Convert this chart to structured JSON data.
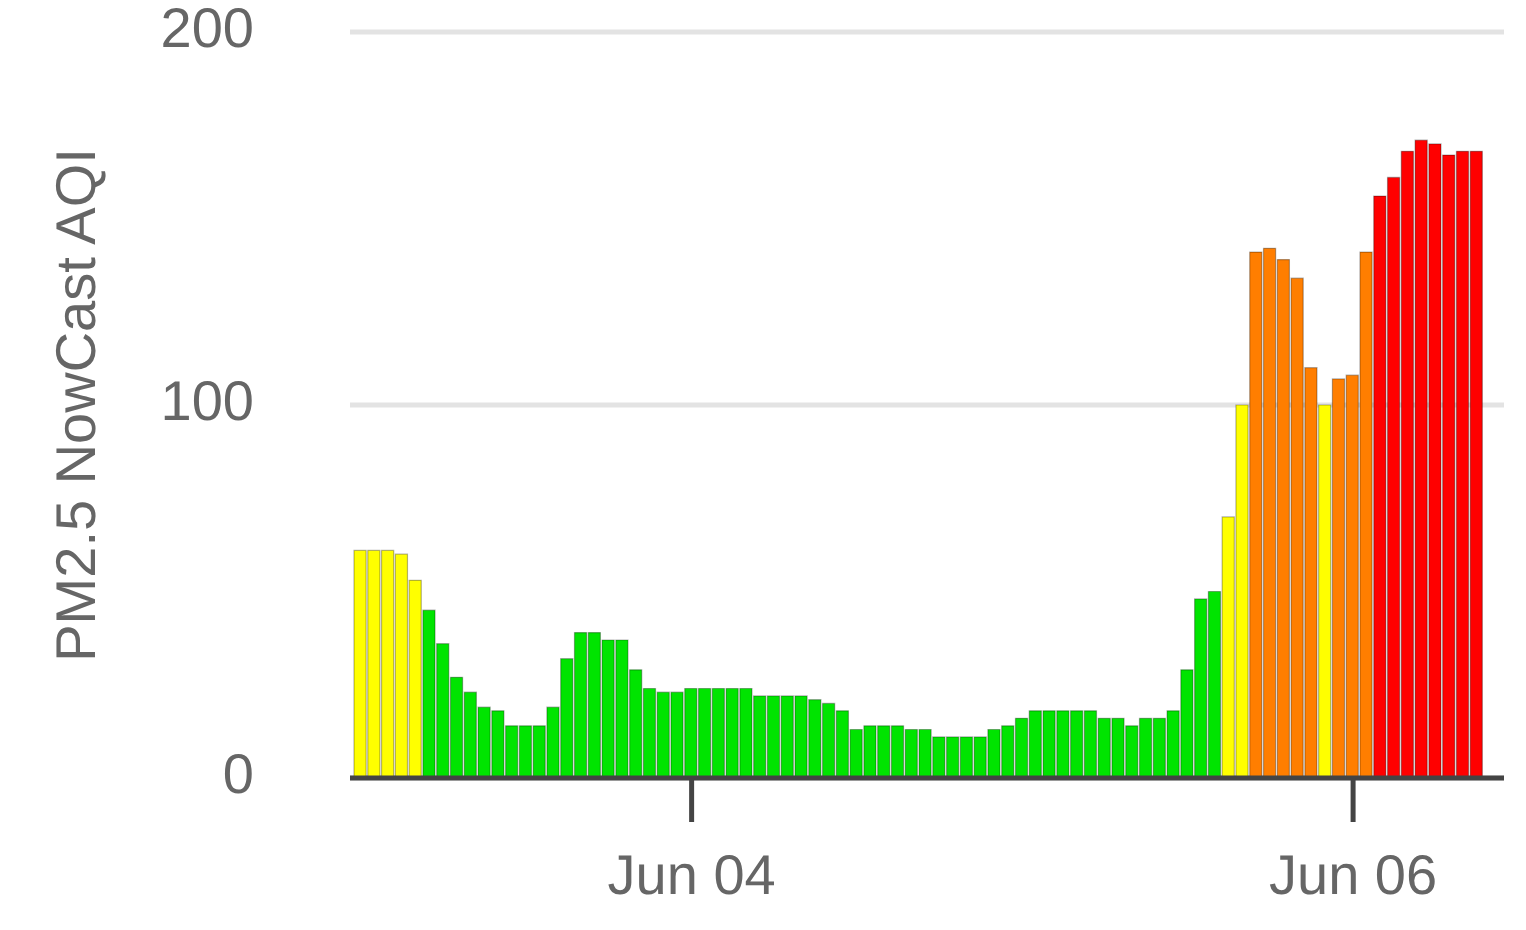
{
  "chart_data": {
    "type": "bar",
    "ylabel": "PM2.5 NowCast AQI",
    "categories": [
      null,
      null,
      null,
      null,
      null,
      null,
      null,
      null,
      null,
      null,
      null,
      null,
      null,
      null,
      null,
      null,
      null,
      null,
      null,
      null,
      null,
      null,
      null,
      null,
      "Jun 04",
      null,
      null,
      null,
      null,
      null,
      null,
      null,
      null,
      null,
      null,
      null,
      null,
      null,
      null,
      null,
      null,
      null,
      null,
      null,
      null,
      null,
      null,
      null,
      null,
      null,
      null,
      null,
      null,
      null,
      null,
      null,
      null,
      null,
      null,
      null,
      null,
      null,
      null,
      null,
      null,
      null,
      null,
      null,
      null,
      null,
      null,
      null,
      "Jun 06",
      null,
      null,
      null,
      null,
      null,
      null,
      null,
      null,
      null
    ],
    "values": [
      61,
      61,
      61,
      60,
      53,
      45,
      36,
      27,
      23,
      19,
      18,
      14,
      14,
      14,
      19,
      32,
      39,
      39,
      37,
      37,
      29,
      24,
      23,
      23,
      24,
      24,
      24,
      24,
      24,
      22,
      22,
      22,
      22,
      21,
      20,
      18,
      13,
      14,
      14,
      14,
      13,
      13,
      11,
      11,
      11,
      11,
      13,
      14,
      16,
      18,
      18,
      18,
      18,
      18,
      16,
      16,
      14,
      16,
      16,
      18,
      29,
      48,
      50,
      70,
      100,
      141,
      142,
      139,
      134,
      110,
      100,
      107,
      108,
      141,
      156,
      161,
      168,
      171,
      170,
      167,
      168,
      168
    ],
    "colors": [
      "#ffff00",
      "#ffff00",
      "#ffff00",
      "#ffff00",
      "#ffff00",
      "#00e400",
      "#00e400",
      "#00e400",
      "#00e400",
      "#00e400",
      "#00e400",
      "#00e400",
      "#00e400",
      "#00e400",
      "#00e400",
      "#00e400",
      "#00e400",
      "#00e400",
      "#00e400",
      "#00e400",
      "#00e400",
      "#00e400",
      "#00e400",
      "#00e400",
      "#00e400",
      "#00e400",
      "#00e400",
      "#00e400",
      "#00e400",
      "#00e400",
      "#00e400",
      "#00e400",
      "#00e400",
      "#00e400",
      "#00e400",
      "#00e400",
      "#00e400",
      "#00e400",
      "#00e400",
      "#00e400",
      "#00e400",
      "#00e400",
      "#00e400",
      "#00e400",
      "#00e400",
      "#00e400",
      "#00e400",
      "#00e400",
      "#00e400",
      "#00e400",
      "#00e400",
      "#00e400",
      "#00e400",
      "#00e400",
      "#00e400",
      "#00e400",
      "#00e400",
      "#00e400",
      "#00e400",
      "#00e400",
      "#00e400",
      "#00e400",
      "#00e400",
      "#ffff00",
      "#ffff00",
      "#ff7e00",
      "#ff7e00",
      "#ff7e00",
      "#ff7e00",
      "#ff7e00",
      "#ffff00",
      "#ff7e00",
      "#ff7e00",
      "#ff7e00",
      "#ff0000",
      "#ff0000",
      "#ff0000",
      "#ff0000",
      "#ff0000",
      "#ff0000",
      "#ff0000",
      "#ff0000"
    ],
    "ylim": [
      0,
      200
    ],
    "yticks": [
      0,
      100,
      200
    ],
    "grid": "y",
    "legend": false
  }
}
